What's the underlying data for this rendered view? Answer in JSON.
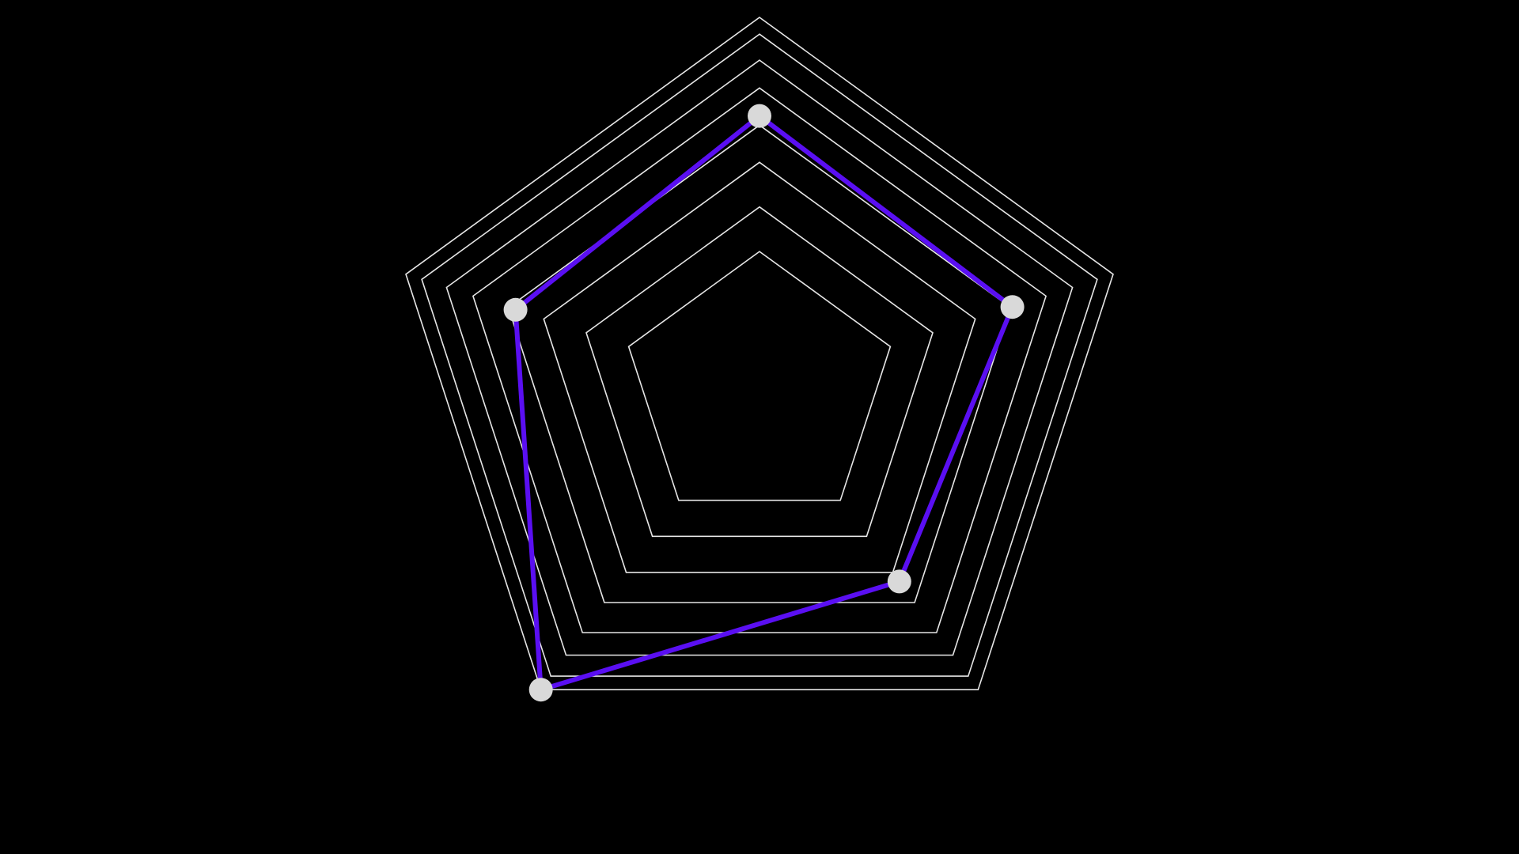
{
  "chart_data": {
    "type": "radar",
    "axis_count": 5,
    "axes": [
      "",
      "",
      "",
      "",
      ""
    ],
    "grid_levels": [
      0.37,
      0.49,
      0.61,
      0.71,
      0.81,
      0.885,
      0.955,
      1.0
    ],
    "range": [
      0,
      1
    ],
    "series": [
      {
        "values": [
          0.735,
          0.715,
          0.64,
          1.0,
          0.69
        ]
      }
    ],
    "grid": true,
    "legend": "none",
    "title": "",
    "colors": {
      "background": "#000000",
      "grid": "#e6e6e6",
      "series_line": "#5a0ff2",
      "marker": "#d9d9d9"
    }
  }
}
